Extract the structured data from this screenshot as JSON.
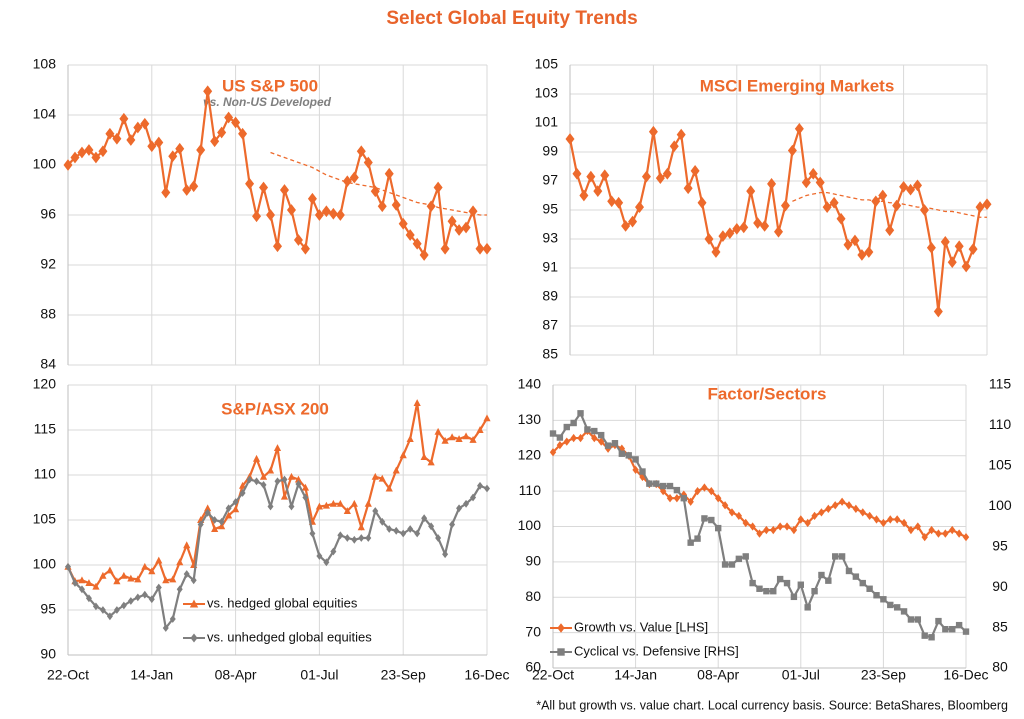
{
  "title": "Select Global Equity Trends",
  "footnote": "*All but growth vs. value chart.  Local currency basis.  Source: BetaShares, Bloomberg",
  "chart_data": [
    {
      "type": "line",
      "title": "US S&P 500",
      "subtitle": "vs. Non-US Developed",
      "ylim": [
        84,
        108
      ],
      "yticks": [
        84,
        88,
        92,
        96,
        100,
        104,
        108
      ],
      "grid": true,
      "series": [
        {
          "color": "#ed6a2c",
          "marker": "diamond",
          "values": [
            100,
            100.6,
            101,
            101.2,
            100.6,
            101.1,
            102.5,
            102.1,
            103.7,
            102.0,
            103.0,
            103.3,
            101.5,
            101.8,
            97.8,
            100.7,
            101.3,
            98.0,
            98.3,
            101.2,
            105.9,
            101.9,
            102.6,
            103.8,
            103.4,
            102.5,
            98.5,
            95.9,
            98.2,
            96.0,
            93.5,
            98.0,
            96.4,
            94.0,
            93.3,
            97.3,
            96.0,
            96.3,
            96.1,
            96.0,
            98.7,
            99.0,
            101.1,
            100.2,
            97.9,
            96.7,
            99.3,
            96.8,
            95.3,
            94.4,
            93.7,
            92.8,
            96.7,
            98.2,
            93.3,
            95.5,
            94.8,
            95.0,
            96.3,
            93.3,
            93.3
          ]
        },
        {
          "color": "#ed6a2c",
          "dash": true,
          "values": [
            null,
            null,
            null,
            null,
            null,
            null,
            null,
            null,
            null,
            null,
            null,
            null,
            null,
            null,
            null,
            null,
            null,
            null,
            null,
            null,
            null,
            null,
            null,
            null,
            null,
            null,
            null,
            null,
            null,
            101,
            100.8,
            100.6,
            100.4,
            100.2,
            100.0,
            99.8,
            99.5,
            99.2,
            99.0,
            98.8,
            98.6,
            98.5,
            98.4,
            98.3,
            98.2,
            98.0,
            97.8,
            97.6,
            97.4,
            97.2,
            97.0,
            96.9,
            96.8,
            96.6,
            96.5,
            96.4,
            96.3,
            96.2,
            96.1,
            96.0,
            96.0
          ]
        }
      ]
    },
    {
      "type": "line",
      "title": "MSCI Emerging Markets",
      "ylim": [
        85,
        105
      ],
      "yticks": [
        85,
        87,
        89,
        91,
        93,
        95,
        97,
        99,
        101,
        103,
        105
      ],
      "grid": true,
      "series": [
        {
          "color": "#ed6a2c",
          "marker": "diamond",
          "values": [
            99.9,
            97.5,
            96.0,
            97.3,
            96.3,
            97.4,
            95.6,
            95.5,
            93.9,
            94.2,
            95.2,
            97.3,
            100.4,
            97.2,
            97.5,
            99.4,
            100.2,
            96.5,
            97.7,
            95.5,
            93.0,
            92.1,
            93.2,
            93.4,
            93.7,
            93.8,
            96.3,
            94.1,
            93.9,
            96.8,
            93.5,
            95.3,
            99.1,
            100.6,
            96.9,
            97.5,
            96.9,
            95.2,
            95.5,
            94.4,
            92.6,
            92.9,
            91.9,
            92.1,
            95.6,
            96.0,
            93.6,
            95.3,
            96.6,
            96.4,
            96.7,
            95.0,
            92.4,
            88.0,
            92.8,
            91.4,
            92.5,
            91.1,
            92.3,
            95.2,
            95.4
          ]
        },
        {
          "color": "#ed6a2c",
          "dash": true,
          "values": [
            null,
            null,
            null,
            null,
            null,
            null,
            null,
            null,
            null,
            null,
            null,
            null,
            null,
            null,
            null,
            null,
            null,
            null,
            null,
            null,
            null,
            null,
            null,
            null,
            null,
            null,
            null,
            null,
            null,
            null,
            null,
            null,
            95.6,
            95.8,
            96.0,
            96.1,
            96.2,
            96.2,
            96.1,
            96.0,
            95.9,
            95.8,
            95.7,
            95.7,
            95.6,
            95.6,
            95.5,
            95.5,
            95.4,
            95.3,
            95.2,
            95.2,
            95.1,
            95.0,
            94.9,
            94.9,
            94.8,
            94.7,
            94.6,
            94.5,
            94.5
          ]
        }
      ]
    },
    {
      "type": "line",
      "title": "S&P/ASX 200",
      "categories": [
        "22-Oct",
        null,
        null,
        null,
        null,
        null,
        null,
        null,
        null,
        null,
        null,
        null,
        "14-Jan",
        null,
        null,
        null,
        null,
        null,
        null,
        null,
        null,
        null,
        null,
        null,
        "08-Apr",
        null,
        null,
        null,
        null,
        null,
        null,
        null,
        null,
        null,
        null,
        null,
        "01-Jul",
        null,
        null,
        null,
        null,
        null,
        null,
        null,
        null,
        null,
        null,
        null,
        "23-Sep",
        null,
        null,
        null,
        null,
        null,
        null,
        null,
        null,
        null,
        null,
        null,
        "16-Dec"
      ],
      "ylim": [
        90,
        120
      ],
      "yticks": [
        90,
        95,
        100,
        105,
        110,
        115,
        120
      ],
      "grid": true,
      "series": [
        {
          "name": "vs. hedged global equities",
          "color": "#ed6a2c",
          "marker": "triangle",
          "values": [
            99.8,
            98.2,
            98.3,
            98.0,
            97.6,
            98.8,
            99.4,
            98.2,
            98.8,
            98.5,
            98.4,
            99.8,
            99.3,
            100.5,
            98.3,
            98.4,
            100.3,
            102.2,
            100.0,
            105.0,
            106.3,
            104.0,
            104.3,
            105.5,
            106.2,
            108.8,
            109.8,
            111.8,
            109.8,
            110.5,
            113.0,
            107.6,
            109.8,
            109.5,
            108.6,
            104.8,
            106.5,
            106.6,
            106.8,
            106.8,
            106.0,
            106.8,
            104.2,
            106.8,
            109.8,
            109.6,
            108.5,
            110.5,
            112.2,
            114.0,
            118.0,
            112.0,
            111.4,
            114.8,
            113.8,
            114.2,
            114.0,
            114.3,
            113.9,
            115.0,
            116.3
          ]
        },
        {
          "name": "vs. unhedged global equities",
          "color": "#7f7f7f",
          "marker": "diamond",
          "values": [
            99.8,
            98.0,
            97.3,
            96.3,
            95.4,
            95.0,
            94.3,
            95.0,
            95.5,
            96.0,
            96.4,
            96.7,
            96.2,
            97.5,
            93.0,
            94.0,
            97.3,
            99.0,
            98.3,
            104.5,
            105.8,
            105.0,
            104.8,
            106.3,
            107.0,
            108.0,
            109.5,
            109.3,
            108.9,
            106.5,
            109.3,
            109.5,
            106.5,
            109.0,
            107.5,
            103.5,
            101.0,
            100.3,
            101.5,
            103.3,
            103.0,
            102.8,
            103.0,
            103.0,
            106.0,
            104.8,
            104.0,
            103.8,
            103.5,
            104.0,
            103.5,
            105.2,
            104.3,
            103.0,
            101.2,
            104.5,
            106.3,
            106.8,
            107.5,
            108.8,
            108.5
          ]
        }
      ]
    },
    {
      "type": "line",
      "title": "Factor/Sectors",
      "categories": [
        "22-Oct",
        null,
        null,
        null,
        null,
        null,
        null,
        null,
        null,
        null,
        null,
        null,
        "14-Jan",
        null,
        null,
        null,
        null,
        null,
        null,
        null,
        null,
        null,
        null,
        null,
        "08-Apr",
        null,
        null,
        null,
        null,
        null,
        null,
        null,
        null,
        null,
        null,
        null,
        "01-Jul",
        null,
        null,
        null,
        null,
        null,
        null,
        null,
        null,
        null,
        null,
        null,
        "23-Sep",
        null,
        null,
        null,
        null,
        null,
        null,
        null,
        null,
        null,
        null,
        null,
        "16-Dec"
      ],
      "ylim": [
        60,
        140
      ],
      "yticks": [
        60,
        70,
        80,
        90,
        100,
        110,
        120,
        130,
        140
      ],
      "y2lim": [
        80,
        115
      ],
      "y2ticks": [
        80,
        85,
        90,
        95,
        100,
        105,
        110,
        115
      ],
      "grid": true,
      "series": [
        {
          "name": "Growth vs. Value [LHS]",
          "color": "#ed6a2c",
          "marker": "diamond",
          "values": [
            121,
            123,
            124,
            125,
            125,
            127,
            125,
            124,
            122,
            123,
            122,
            120,
            116,
            114,
            112,
            112,
            110,
            108,
            108,
            109,
            107,
            110,
            111,
            110,
            108,
            106,
            104,
            103,
            101,
            100,
            98,
            99,
            99,
            100,
            100,
            99,
            102,
            101,
            103,
            104,
            105,
            106,
            107,
            106,
            105,
            104,
            103,
            102,
            101,
            102,
            102,
            101,
            99,
            100,
            97,
            99,
            98,
            98,
            99,
            98,
            97
          ]
        },
        {
          "name": "Cyclical vs. Defensive [RHS]",
          "color": "#7f7f7f",
          "marker": "square",
          "axis": "y2",
          "values": [
            109,
            108.5,
            109.8,
            110.3,
            111.5,
            109.5,
            109.3,
            108.8,
            107.5,
            107.8,
            106.5,
            106.3,
            105.8,
            104.3,
            102.8,
            102.8,
            102.5,
            102.5,
            102,
            101,
            95.5,
            96,
            98.5,
            98.3,
            97.3,
            92.8,
            92.8,
            93.5,
            93.8,
            90.5,
            89.8,
            89.5,
            89.5,
            91,
            90.5,
            88.8,
            90.3,
            87.5,
            89.5,
            91.5,
            90.8,
            93.8,
            93.8,
            92,
            91.3,
            90.5,
            89.8,
            89,
            88.5,
            87.8,
            87.5,
            87,
            86,
            86,
            84,
            83.8,
            85.8,
            84.8,
            84.8,
            85.3,
            84.5
          ]
        }
      ]
    }
  ]
}
